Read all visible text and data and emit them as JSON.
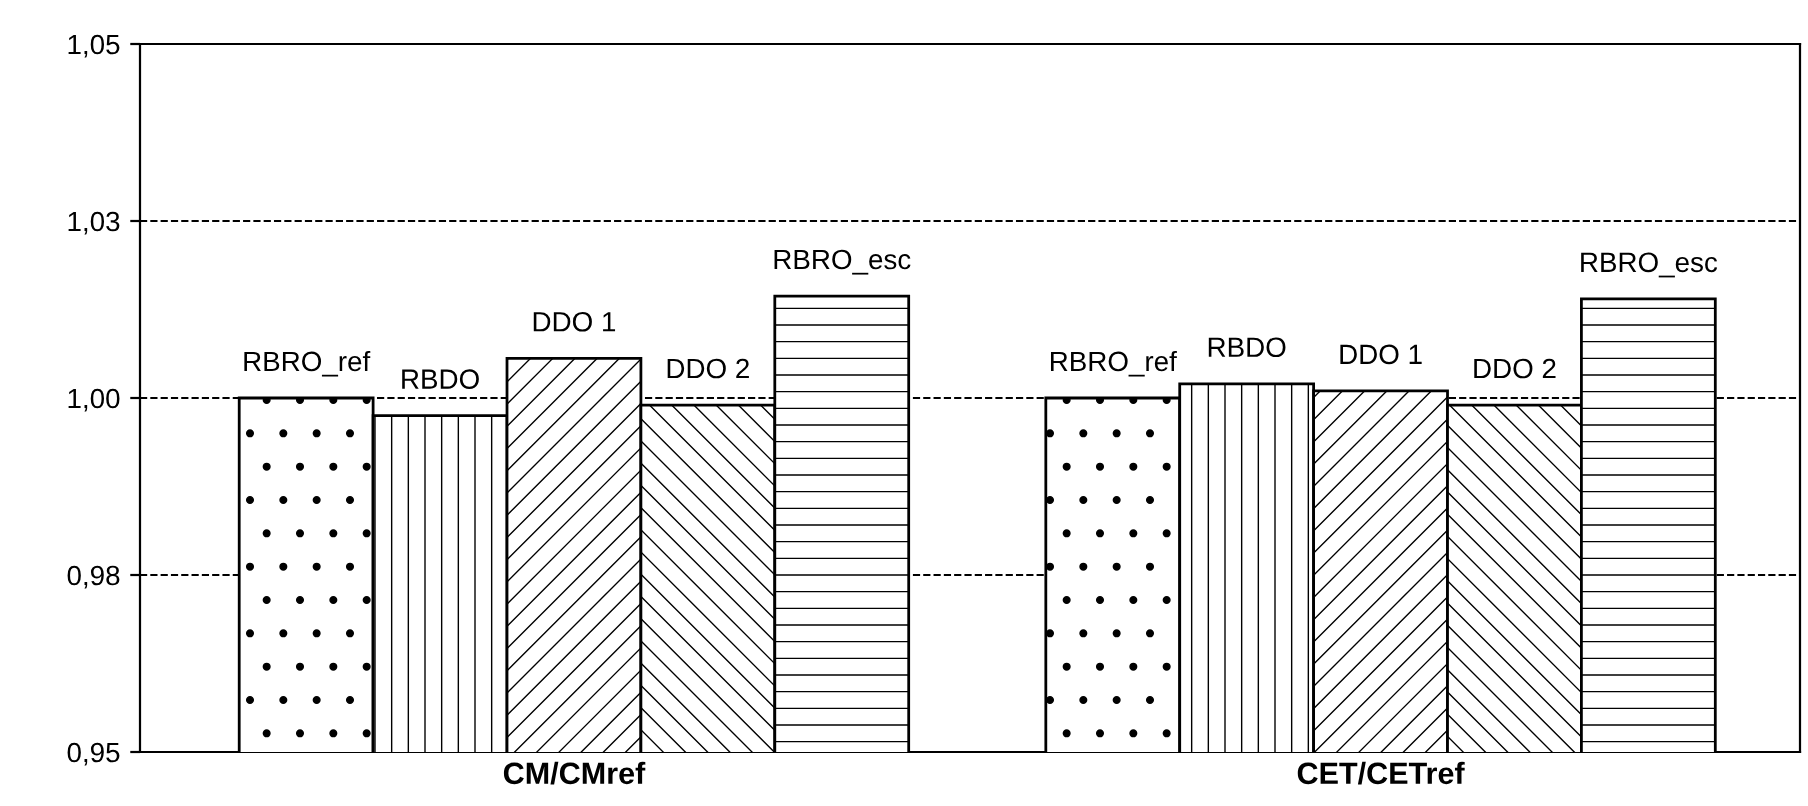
{
  "chart_data": {
    "type": "bar",
    "categories": [
      "CM/CMref",
      "CET/CETref"
    ],
    "series": [
      {
        "name": "RBRO_ref",
        "color": "#000000",
        "values": [
          1.0,
          1.0
        ]
      },
      {
        "name": "RBDO",
        "color": "#000000",
        "values": [
          0.9975,
          1.002
        ]
      },
      {
        "name": "DDO 1",
        "color": "#000000",
        "values": [
          1.0056,
          1.001
        ]
      },
      {
        "name": "DDO 2",
        "color": "#000000",
        "values": [
          0.999,
          0.999
        ]
      },
      {
        "name": "RBRO_esc",
        "color": "#000000",
        "values": [
          1.0144,
          1.014
        ]
      }
    ],
    "ylim": [
      0.95,
      1.05
    ],
    "yticks": [
      {
        "value": 0.95,
        "label": "0,95"
      },
      {
        "value": 0.975,
        "label": "0,98"
      },
      {
        "value": 1.0,
        "label": "1,00"
      },
      {
        "value": 1.025,
        "label": "1,03"
      },
      {
        "value": 1.05,
        "label": "1,05"
      }
    ],
    "grid": "y",
    "line_style": "dashed",
    "legend": false
  }
}
